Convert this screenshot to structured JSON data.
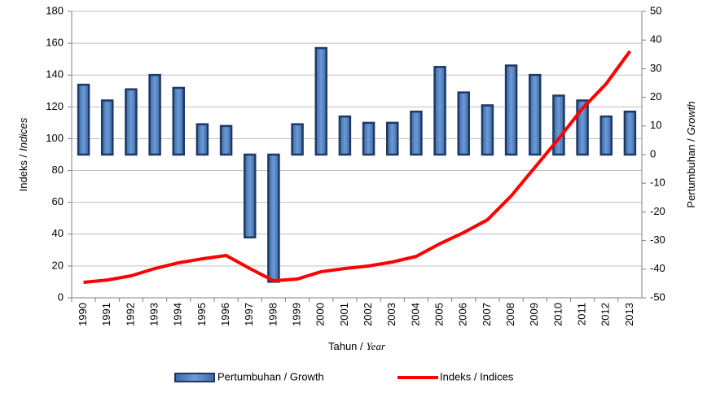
{
  "chart_data": {
    "type": "bar-line",
    "x_label": [
      "Tahun /",
      "Year"
    ],
    "y_label": [
      "Indeks /",
      "Indices"
    ],
    "y2_label": [
      "Pertumbuhan /",
      "Growth"
    ],
    "categories": [
      "1990",
      "1991",
      "1992",
      "1993",
      "1994",
      "1995",
      "1996",
      "1997",
      "1998",
      "1999",
      "2000",
      "2001",
      "2002",
      "2003",
      "2004",
      "2005",
      "2006",
      "2007",
      "2008",
      "2009",
      "2010",
      "2011",
      "2012",
      "2013"
    ],
    "series": [
      {
        "name": "Pertumbuhan / Growth",
        "type": "bar",
        "axis": "y2",
        "color": "#4f81bd",
        "stroke": "#1f3864",
        "values": [
          24.4,
          18.9,
          22.8,
          27.8,
          23.3,
          10.6,
          10,
          -28.9,
          -44.4,
          10.6,
          37.2,
          13.3,
          11.1,
          11.1,
          15,
          30.6,
          21.7,
          17.2,
          31.1,
          27.8,
          20.6,
          18.9,
          13.3,
          15
        ]
      },
      {
        "name": "Indeks / Indices",
        "type": "line",
        "axis": "y",
        "color": "#ff0000",
        "values": [
          9.7,
          11.2,
          13.8,
          18.4,
          22,
          24.5,
          26.6,
          18.4,
          10.7,
          11.8,
          16.4,
          18.4,
          20,
          22.5,
          26,
          34,
          41,
          49,
          64,
          82,
          100,
          119,
          134.5,
          155
        ]
      }
    ],
    "ylim": [
      0,
      180
    ],
    "yticks": [
      0,
      20,
      40,
      60,
      80,
      100,
      120,
      140,
      160,
      180
    ],
    "y2lim": [
      -50,
      50
    ],
    "y2ticks": [
      {
        "value": -50,
        "label": "-50"
      },
      {
        "value": -40,
        "label": "-40"
      },
      {
        "value": -30,
        "label": "-30"
      },
      {
        "value": -20,
        "label": "-20"
      },
      {
        "value": -10,
        "label": "-10"
      },
      0,
      10,
      20,
      30,
      40,
      50
    ],
    "grid": true,
    "legend": "bottom"
  }
}
